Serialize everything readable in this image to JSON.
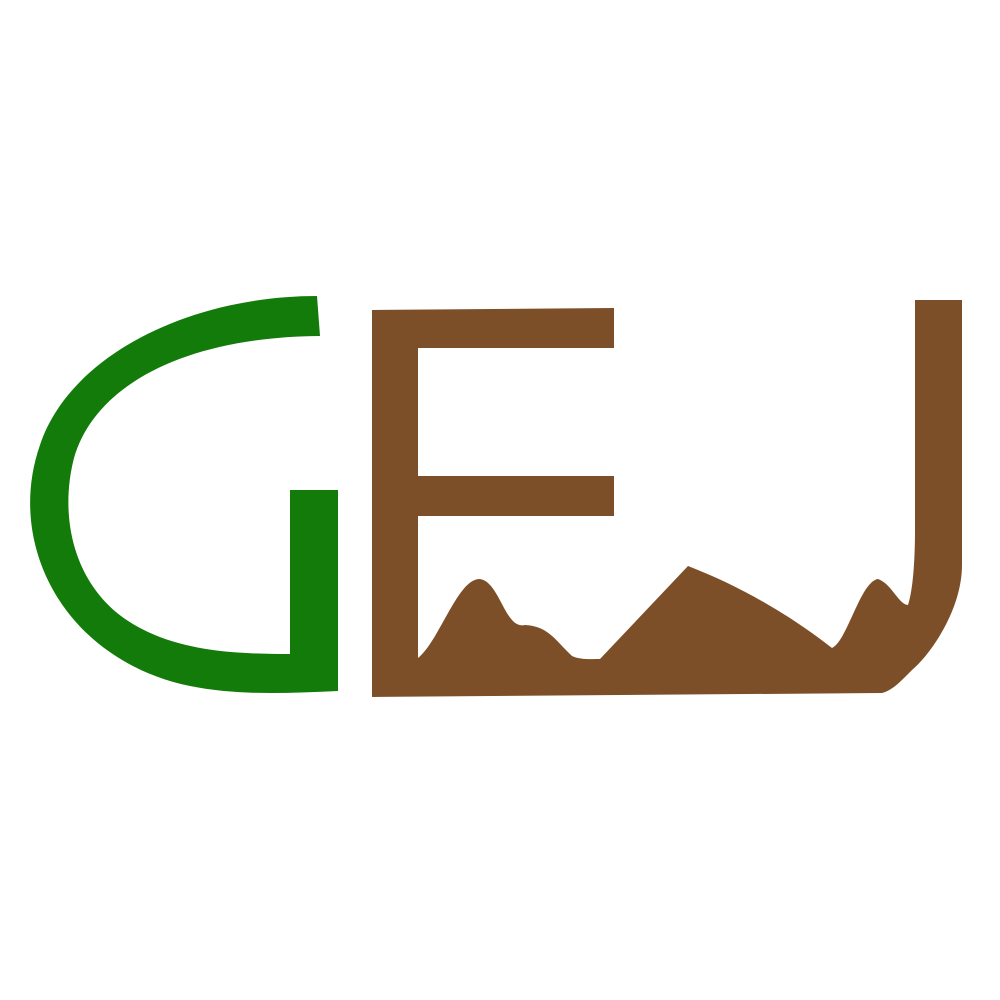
{
  "logo": {
    "text": "GEJ",
    "letters": [
      {
        "char": "G",
        "color": "#137b0a"
      },
      {
        "char": "E",
        "color": "#7c4f28"
      },
      {
        "char": "J",
        "color": "#7c4f28"
      }
    ],
    "motif": "mountain-silhouette",
    "colors": {
      "green": "#137b0a",
      "brown": "#7c4f28",
      "background": "#ffffff"
    }
  }
}
